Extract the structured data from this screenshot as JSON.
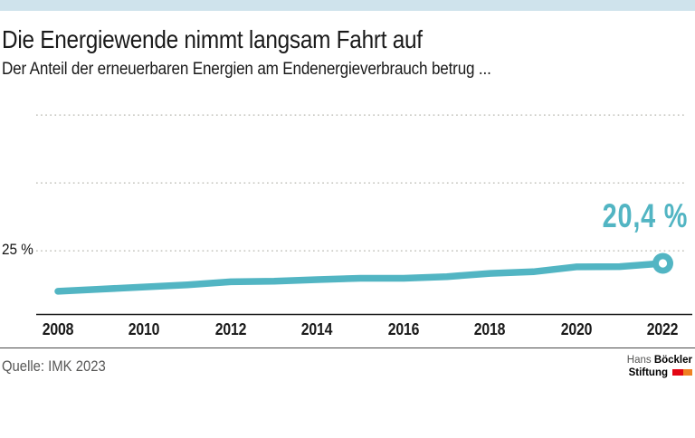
{
  "header": {
    "title": "Die Energiewende nimmt langsam Fahrt auf",
    "subtitle": "Der Anteil der erneuerbaren Energien am Endenergieverbrauch betrug ..."
  },
  "chart_data": {
    "type": "line",
    "title": "Die Energiewende nimmt langsam Fahrt auf",
    "subtitle": "Der Anteil der erneuerbaren Energien am Endenergieverbrauch betrug ...",
    "x": [
      2008,
      2009,
      2010,
      2011,
      2012,
      2013,
      2014,
      2015,
      2016,
      2017,
      2018,
      2019,
      2020,
      2021,
      2022
    ],
    "values": [
      10.1,
      10.9,
      11.7,
      12.5,
      13.6,
      13.8,
      14.4,
      14.9,
      14.9,
      15.5,
      16.7,
      17.3,
      19.1,
      19.2,
      20.4
    ],
    "unit": "%",
    "x_tick_labels": [
      "2008",
      "2010",
      "2012",
      "2014",
      "2016",
      "2018",
      "2020",
      "2022"
    ],
    "y_gridlines": [
      25,
      50,
      75
    ],
    "y_tick_label": "25 %",
    "annotation": "20,4 %",
    "annotation_value": 20.4,
    "ylim": [
      0,
      80
    ],
    "grid": "dotted horizontal",
    "legend_position": "none"
  },
  "footer": {
    "source": "Quelle: IMK 2023",
    "logo": {
      "hans": "Hans ",
      "boeckler": "Böckler",
      "stiftung": "Stiftung"
    }
  },
  "colors": {
    "accent_teal": "#52b5c3",
    "topbar_blue": "#cfe3ec",
    "gridline_gray": "#c8c8c2",
    "axis_black": "#1a1a1a",
    "logo_red": "#e30613",
    "logo_orange": "#ef8022"
  }
}
